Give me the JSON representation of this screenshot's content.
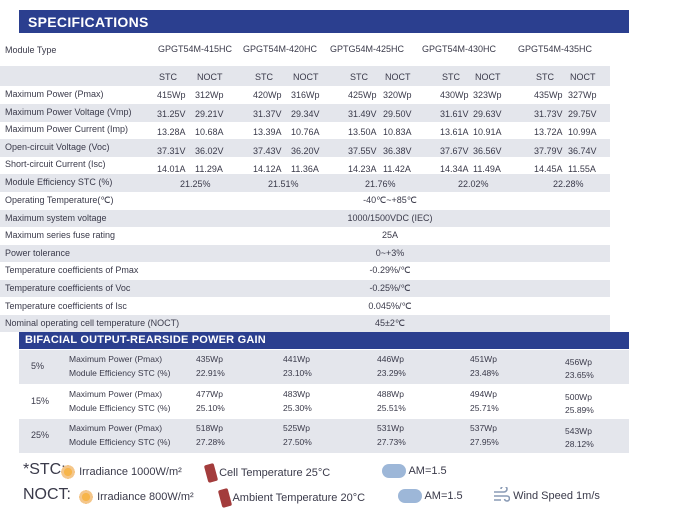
{
  "title": "SPECIFICATIONS",
  "module_type_label": "Module Type",
  "models": [
    "GPGT54M-415HC",
    "GPGT54M-420HC",
    "GPTG54M-425HC",
    "GPGT54M-430HC",
    "GPGT54M-435HC"
  ],
  "stc_label": "STC",
  "noct_label": "NOCT",
  "electrical_rows": [
    {
      "label": "Maximum Power (Pmax)",
      "values": [
        "415Wp",
        "312Wp",
        "420Wp",
        "316Wp",
        "425Wp",
        "320Wp",
        "430Wp",
        "323Wp",
        "435Wp",
        "327Wp"
      ]
    },
    {
      "label": "Maximum Power Voltage (Vmp)",
      "values": [
        "31.25V",
        "29.21V",
        "31.37V",
        "29.34V",
        "31.49V",
        "29.50V",
        "31.61V",
        "29.63V",
        "31.73V",
        "29.75V"
      ]
    },
    {
      "label": "Maximum Power Current (Imp)",
      "values": [
        "13.28A",
        "10.68A",
        "13.39A",
        "10.76A",
        "13.50A",
        "10.83A",
        "13.61A",
        "10.91A",
        "13.72A",
        "10.99A"
      ]
    },
    {
      "label": "Open-circuit Voltage (Voc)",
      "values": [
        "37.31V",
        "36.02V",
        "37.43V",
        "36.20V",
        "37.55V",
        "36.38V",
        "37.67V",
        "36.56V",
        "37.79V",
        "36.74V"
      ]
    },
    {
      "label": "Short-circuit Current (Isc)",
      "values": [
        "14.01A",
        "11.29A",
        "14.12A",
        "11.36A",
        "14.23A",
        "11.42A",
        "14.34A",
        "11.49A",
        "14.45A",
        "11.55A"
      ]
    }
  ],
  "efficiency_row": {
    "label": "Module Efficiency STC (%)",
    "values": [
      "21.25%",
      "21.51%",
      "21.76%",
      "22.02%",
      "22.28%"
    ]
  },
  "general_rows": [
    {
      "label": "Operating Temperature(℃)",
      "value": "-40℃~+85℃"
    },
    {
      "label": "Maximum system voltage",
      "value": "1000/1500VDC (IEC)"
    },
    {
      "label": "Maximum series fuse rating",
      "value": "25A"
    },
    {
      "label": "Power tolerance",
      "value": "0~+3%"
    },
    {
      "label": "Temperature coefficients of Pmax",
      "value": "-0.29%/℃"
    },
    {
      "label": "Temperature coefficients of Voc",
      "value": "-0.25%/℃"
    },
    {
      "label": "Temperature coefficients of Isc",
      "value": "0.045%/℃"
    },
    {
      "label": "Nominal operating cell temperature (NOCT)",
      "value": "45±2℃"
    }
  ],
  "bifacial": {
    "title": "BIFACIAL OUTPUT-REARSIDE POWER GAIN",
    "power_label": "Maximum Power (Pmax)",
    "eff_label": "Module Efficiency STC (%)",
    "rows": [
      {
        "gain": "5%",
        "power": [
          "435Wp",
          "441Wp",
          "446Wp",
          "451Wp",
          "456Wp"
        ],
        "eff": [
          "22.91%",
          "23.10%",
          "23.29%",
          "23.48%",
          "23.65%"
        ]
      },
      {
        "gain": "15%",
        "power": [
          "477Wp",
          "483Wp",
          "488Wp",
          "494Wp",
          "500Wp"
        ],
        "eff": [
          "25.10%",
          "25.30%",
          "25.51%",
          "25.71%",
          "25.89%"
        ]
      },
      {
        "gain": "25%",
        "power": [
          "518Wp",
          "525Wp",
          "531Wp",
          "537Wp",
          "543Wp"
        ],
        "eff": [
          "27.28%",
          "27.50%",
          "27.73%",
          "27.95%",
          "28.12%"
        ]
      }
    ]
  },
  "legend": {
    "stc": {
      "lead": "*STC:",
      "irradiance": "Irradiance 1000W/m²",
      "temp": "Cell Temperature 25°C",
      "am": "AM=1.5"
    },
    "noct": {
      "lead": "NOCT:",
      "irradiance": "Irradiance 800W/m²",
      "temp": "Ambient Temperature 20°C",
      "am": "AM=1.5",
      "wind": "Wind Speed 1m/s"
    }
  },
  "icons": [
    "sun-icon",
    "thermometer-icon",
    "cloud-icon",
    "wind-icon"
  ],
  "colors": {
    "banner": "#2b3f8f",
    "shade": "#e4e6ec"
  }
}
